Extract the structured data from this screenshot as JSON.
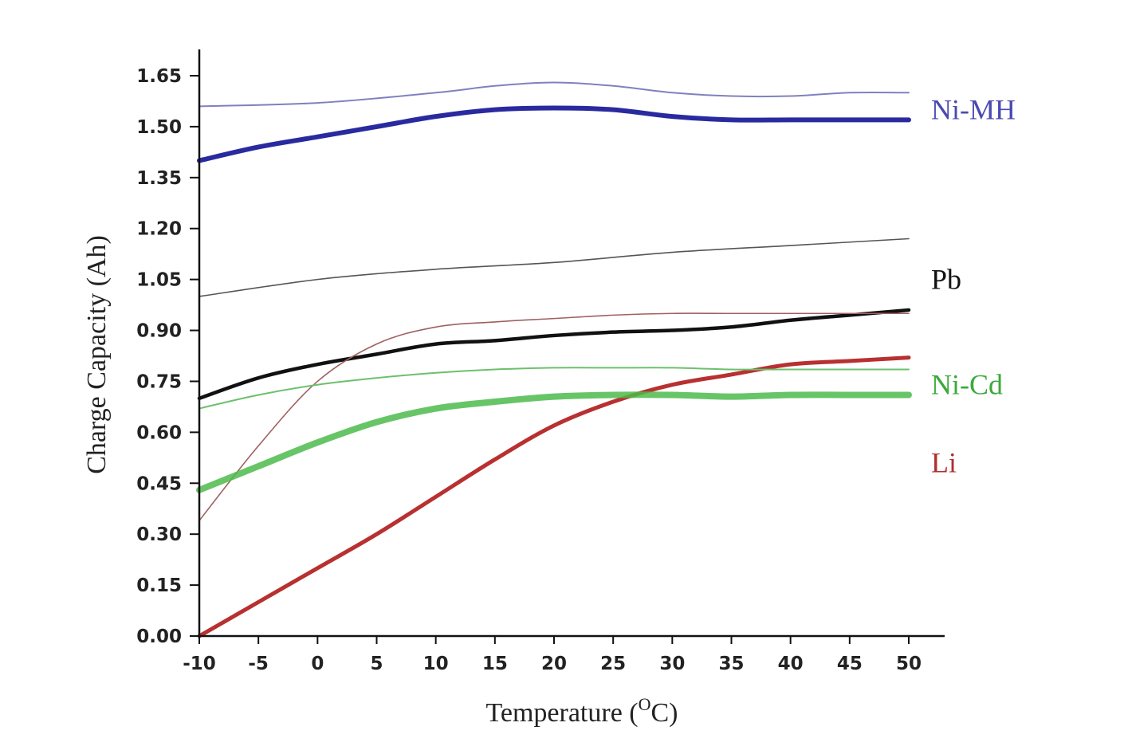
{
  "chart_data": {
    "type": "line",
    "xlabel": "Temperature (",
    "xlabel_sup": "O",
    "xlabel_tail": "C)",
    "ylabel": "Charge Capacity (Ah)",
    "xlim": [
      -10,
      50
    ],
    "ylim": [
      0,
      1.65
    ],
    "x_ticks": [
      "-10",
      "-5",
      "0",
      "5",
      "10",
      "15",
      "20",
      "25",
      "30",
      "35",
      "40",
      "45",
      "50"
    ],
    "y_ticks": [
      "0.00",
      "0.15",
      "0.30",
      "0.45",
      "0.60",
      "0.75",
      "0.90",
      "1.05",
      "1.20",
      "1.35",
      "1.50",
      "1.65"
    ],
    "grid": false,
    "legend_position": "right, beside each series pair",
    "legend": [
      {
        "name": "Ni-MH",
        "color": "#4a4ab0",
        "y": 1.55
      },
      {
        "name": "Pb",
        "color": "#111111",
        "y": 1.05
      },
      {
        "name": "Ni-Cd",
        "color": "#3aaa3a",
        "y": 0.74
      },
      {
        "name": "Li",
        "color": "#b03030",
        "y": 0.51
      }
    ],
    "series": [
      {
        "legend_key": "Ni-MH",
        "variant": "thin",
        "color": "#8080c0",
        "width": 2,
        "x": [
          -10,
          0,
          10,
          15,
          20,
          25,
          30,
          35,
          40,
          45,
          50
        ],
        "y": [
          1.56,
          1.57,
          1.6,
          1.62,
          1.63,
          1.62,
          1.6,
          1.59,
          1.59,
          1.6,
          1.6
        ]
      },
      {
        "legend_key": "Ni-MH",
        "variant": "thick",
        "color": "#2a2aa0",
        "width": 6,
        "x": [
          -10,
          -5,
          0,
          5,
          10,
          15,
          20,
          25,
          30,
          35,
          40,
          45,
          50
        ],
        "y": [
          1.4,
          1.44,
          1.47,
          1.5,
          1.53,
          1.55,
          1.555,
          1.55,
          1.53,
          1.52,
          1.52,
          1.52,
          1.52
        ]
      },
      {
        "legend_key": "Pb",
        "variant": "thin",
        "color": "#555555",
        "width": 1.6,
        "x": [
          -10,
          0,
          10,
          20,
          30,
          40,
          50
        ],
        "y": [
          1.0,
          1.05,
          1.08,
          1.1,
          1.13,
          1.15,
          1.17
        ]
      },
      {
        "legend_key": "Pb",
        "variant": "thick",
        "color": "#111111",
        "width": 4.5,
        "x": [
          -10,
          -5,
          0,
          5,
          10,
          15,
          20,
          25,
          30,
          35,
          40,
          45,
          50
        ],
        "y": [
          0.7,
          0.76,
          0.8,
          0.83,
          0.86,
          0.87,
          0.885,
          0.895,
          0.9,
          0.91,
          0.93,
          0.945,
          0.96
        ]
      },
      {
        "legend_key": "Li",
        "variant": "thin",
        "color": "#a06060",
        "width": 1.6,
        "x": [
          -10,
          -5,
          0,
          5,
          10,
          15,
          20,
          25,
          30,
          35,
          40,
          45,
          50
        ],
        "y": [
          0.34,
          0.56,
          0.75,
          0.86,
          0.91,
          0.925,
          0.935,
          0.945,
          0.95,
          0.95,
          0.95,
          0.95,
          0.95
        ]
      },
      {
        "legend_key": "Li",
        "variant": "thick",
        "color": "#b83030",
        "width": 5,
        "x": [
          -10,
          -5,
          0,
          5,
          10,
          15,
          20,
          25,
          30,
          35,
          40,
          45,
          50
        ],
        "y": [
          0.0,
          0.1,
          0.2,
          0.3,
          0.41,
          0.52,
          0.62,
          0.69,
          0.74,
          0.77,
          0.8,
          0.81,
          0.82
        ]
      },
      {
        "legend_key": "Ni-Cd",
        "variant": "thin",
        "color": "#6cc06c",
        "width": 2,
        "x": [
          -10,
          -5,
          0,
          5,
          10,
          15,
          20,
          25,
          30,
          35,
          40,
          45,
          50
        ],
        "y": [
          0.67,
          0.71,
          0.74,
          0.76,
          0.775,
          0.785,
          0.79,
          0.79,
          0.79,
          0.785,
          0.785,
          0.785,
          0.785
        ]
      },
      {
        "legend_key": "Ni-Cd",
        "variant": "thick",
        "color": "#4cbb4c",
        "width": 8,
        "x": [
          -10,
          -5,
          0,
          5,
          10,
          15,
          20,
          25,
          30,
          35,
          40,
          45,
          50
        ],
        "y": [
          0.43,
          0.5,
          0.57,
          0.63,
          0.67,
          0.69,
          0.705,
          0.71,
          0.71,
          0.705,
          0.71,
          0.71,
          0.71
        ]
      }
    ]
  }
}
